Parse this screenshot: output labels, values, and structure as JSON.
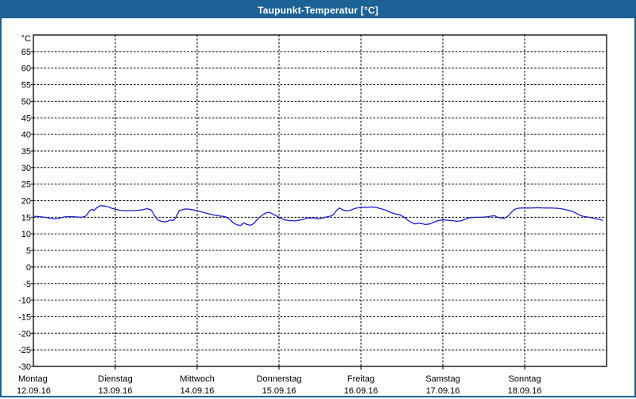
{
  "window": {
    "title": "Taupunkt-Temperatur [°C]"
  },
  "colors": {
    "titlebar_bg": "#1d6294",
    "titlebar_text": "#ffffff",
    "window_border": "#1d6294",
    "window_bg": "#fbfefb",
    "grid": "#000000",
    "axis": "#000000",
    "label_text": "#000000",
    "series_line": "#1e1ec8"
  },
  "chart_data": {
    "type": "line",
    "title": "Taupunkt-Temperatur [°C]",
    "y_unit_label": "°C",
    "ylim": [
      -30,
      70
    ],
    "y_tick_step": 5,
    "y_tick_labels": [
      "°C",
      "65",
      "60",
      "55",
      "50",
      "45",
      "40",
      "35",
      "30",
      "25",
      "20",
      "15",
      "10",
      "5",
      "0",
      "-5",
      "-10",
      "-15",
      "-20",
      "-25",
      "-30"
    ],
    "grid": "dashed",
    "legend": "none",
    "x_axis": {
      "span_days": 7,
      "days": [
        {
          "name": "Montag",
          "date": "12.09.16"
        },
        {
          "name": "Dienstag",
          "date": "13.09.16"
        },
        {
          "name": "Mittwoch",
          "date": "14.09.16"
        },
        {
          "name": "Donnerstag",
          "date": "15.09.16"
        },
        {
          "name": "Freitag",
          "date": "16.09.16"
        },
        {
          "name": "Samstag",
          "date": "17.09.16"
        },
        {
          "name": "Sonntag",
          "date": "18.09.16"
        }
      ]
    },
    "series": [
      {
        "name": "Taupunkt",
        "color": "#1e1ec8",
        "points": [
          [
            0.0,
            15.3
          ],
          [
            0.07,
            15.2
          ],
          [
            0.14,
            15.0
          ],
          [
            0.21,
            14.7
          ],
          [
            0.26,
            14.5
          ],
          [
            0.31,
            14.7
          ],
          [
            0.38,
            15.1
          ],
          [
            0.45,
            15.2
          ],
          [
            0.52,
            15.1
          ],
          [
            0.58,
            15.0
          ],
          [
            0.63,
            15.2
          ],
          [
            0.66,
            16.0
          ],
          [
            0.69,
            17.1
          ],
          [
            0.72,
            17.4
          ],
          [
            0.74,
            17.0
          ],
          [
            0.78,
            18.0
          ],
          [
            0.82,
            18.5
          ],
          [
            0.87,
            18.4
          ],
          [
            0.92,
            18.1
          ],
          [
            0.96,
            17.7
          ],
          [
            1.0,
            17.4
          ],
          [
            1.06,
            17.1
          ],
          [
            1.12,
            17.0
          ],
          [
            1.2,
            17.0
          ],
          [
            1.28,
            17.1
          ],
          [
            1.34,
            17.3
          ],
          [
            1.39,
            17.6
          ],
          [
            1.44,
            17.2
          ],
          [
            1.48,
            15.5
          ],
          [
            1.52,
            14.2
          ],
          [
            1.56,
            13.8
          ],
          [
            1.61,
            13.6
          ],
          [
            1.65,
            13.9
          ],
          [
            1.68,
            14.2
          ],
          [
            1.71,
            14.0
          ],
          [
            1.74,
            15.0
          ],
          [
            1.78,
            16.9
          ],
          [
            1.82,
            17.3
          ],
          [
            1.86,
            17.5
          ],
          [
            1.91,
            17.4
          ],
          [
            1.96,
            17.2
          ],
          [
            2.0,
            17.0
          ],
          [
            2.06,
            16.6
          ],
          [
            2.13,
            16.1
          ],
          [
            2.2,
            15.7
          ],
          [
            2.27,
            15.4
          ],
          [
            2.34,
            15.2
          ],
          [
            2.4,
            14.4
          ],
          [
            2.44,
            13.3
          ],
          [
            2.49,
            12.7
          ],
          [
            2.53,
            12.5
          ],
          [
            2.57,
            13.3
          ],
          [
            2.61,
            12.8
          ],
          [
            2.65,
            12.6
          ],
          [
            2.69,
            13.1
          ],
          [
            2.74,
            14.5
          ],
          [
            2.79,
            15.6
          ],
          [
            2.84,
            16.3
          ],
          [
            2.88,
            16.5
          ],
          [
            2.93,
            15.9
          ],
          [
            3.0,
            15.0
          ],
          [
            3.06,
            14.3
          ],
          [
            3.12,
            14.0
          ],
          [
            3.2,
            13.9
          ],
          [
            3.28,
            14.3
          ],
          [
            3.35,
            14.8
          ],
          [
            3.42,
            14.8
          ],
          [
            3.48,
            14.5
          ],
          [
            3.54,
            14.8
          ],
          [
            3.58,
            15.1
          ],
          [
            3.62,
            15.3
          ],
          [
            3.66,
            15.7
          ],
          [
            3.7,
            17.0
          ],
          [
            3.74,
            17.8
          ],
          [
            3.78,
            17.2
          ],
          [
            3.83,
            16.9
          ],
          [
            3.88,
            17.2
          ],
          [
            3.93,
            17.7
          ],
          [
            4.0,
            18.0
          ],
          [
            4.06,
            18.0
          ],
          [
            4.12,
            18.1
          ],
          [
            4.18,
            18.0
          ],
          [
            4.24,
            17.6
          ],
          [
            4.3,
            17.2
          ],
          [
            4.36,
            16.5
          ],
          [
            4.42,
            16.0
          ],
          [
            4.48,
            15.7
          ],
          [
            4.53,
            15.0
          ],
          [
            4.58,
            14.0
          ],
          [
            4.62,
            13.4
          ],
          [
            4.66,
            13.0
          ],
          [
            4.7,
            13.2
          ],
          [
            4.74,
            13.1
          ],
          [
            4.79,
            12.8
          ],
          [
            4.84,
            13.0
          ],
          [
            4.89,
            13.5
          ],
          [
            4.94,
            14.0
          ],
          [
            5.0,
            14.2
          ],
          [
            5.06,
            14.1
          ],
          [
            5.12,
            14.0
          ],
          [
            5.17,
            13.8
          ],
          [
            5.22,
            13.9
          ],
          [
            5.27,
            14.4
          ],
          [
            5.33,
            14.9
          ],
          [
            5.4,
            15.0
          ],
          [
            5.47,
            15.0
          ],
          [
            5.53,
            15.1
          ],
          [
            5.58,
            15.3
          ],
          [
            5.63,
            15.5
          ],
          [
            5.67,
            15.0
          ],
          [
            5.71,
            14.8
          ],
          [
            5.75,
            14.7
          ],
          [
            5.79,
            15.2
          ],
          [
            5.83,
            16.3
          ],
          [
            5.87,
            17.3
          ],
          [
            5.91,
            17.7
          ],
          [
            5.96,
            17.8
          ],
          [
            6.0,
            17.8
          ],
          [
            6.08,
            17.8
          ],
          [
            6.16,
            17.9
          ],
          [
            6.25,
            17.8
          ],
          [
            6.33,
            17.8
          ],
          [
            6.4,
            17.7
          ],
          [
            6.46,
            17.5
          ],
          [
            6.52,
            17.2
          ],
          [
            6.58,
            16.8
          ],
          [
            6.63,
            16.2
          ],
          [
            6.67,
            15.7
          ],
          [
            6.71,
            15.3
          ],
          [
            6.76,
            15.1
          ],
          [
            6.81,
            14.9
          ],
          [
            6.86,
            14.6
          ],
          [
            6.91,
            14.4
          ],
          [
            6.95,
            14.1
          ]
        ]
      }
    ]
  }
}
